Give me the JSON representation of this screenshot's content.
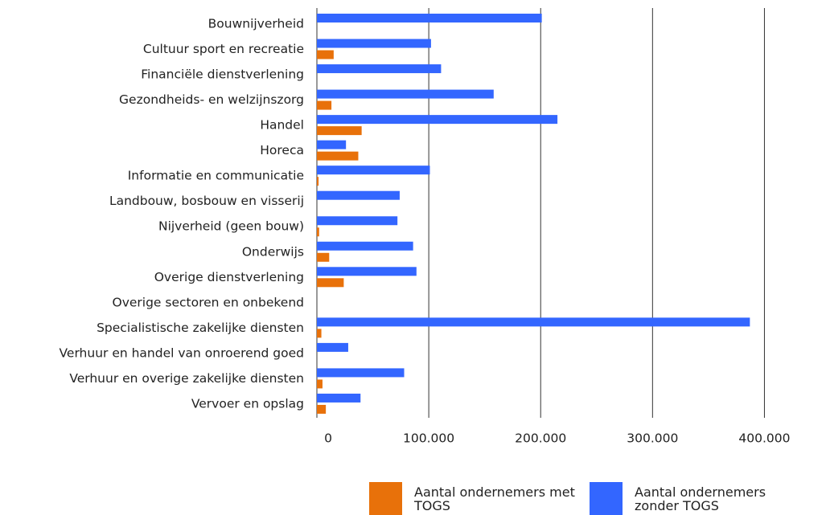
{
  "chart_data": {
    "type": "hbar",
    "categories": [
      "Bouwnijverheid",
      "Cultuur sport en recreatie",
      "Financiële dienstverlening",
      "Gezondheids- en welzijnszorg",
      "Handel",
      "Horeca",
      "Informatie en communicatie",
      "Landbouw, bosbouw en visserij",
      "Nijverheid (geen bouw)",
      "Onderwijs",
      "Overige dienstverlening",
      "Overige sectoren en onbekend",
      "Specialistische zakelijke diensten",
      "Verhuur en handel van onroerend goed",
      "Verhuur en overige zakelijke diensten",
      "Vervoer en opslag"
    ],
    "series": [
      {
        "name": "Aantal ondernemers met TOGS",
        "color": "#e8710a",
        "values": [
          0,
          15000,
          0,
          13000,
          40000,
          37000,
          1500,
          0,
          2000,
          11000,
          24000,
          0,
          4000,
          0,
          5000,
          8000
        ]
      },
      {
        "name": "Aantal ondernemers zonder TOGS",
        "color": "#3366ff",
        "values": [
          201000,
          102000,
          111000,
          158000,
          215000,
          26000,
          101000,
          74000,
          72000,
          86000,
          89000,
          0,
          387000,
          28000,
          78000,
          39000
        ]
      }
    ],
    "xlim": [
      0,
      450000
    ],
    "xticks": [
      0,
      {
        "value": 100000,
        "label": "100.000"
      },
      {
        "value": 200000,
        "label": "200.000"
      },
      {
        "value": 300000,
        "label": "300.000"
      },
      {
        "value": 400000,
        "label": "400.000"
      }
    ],
    "grid": true,
    "legend": "bottom"
  }
}
